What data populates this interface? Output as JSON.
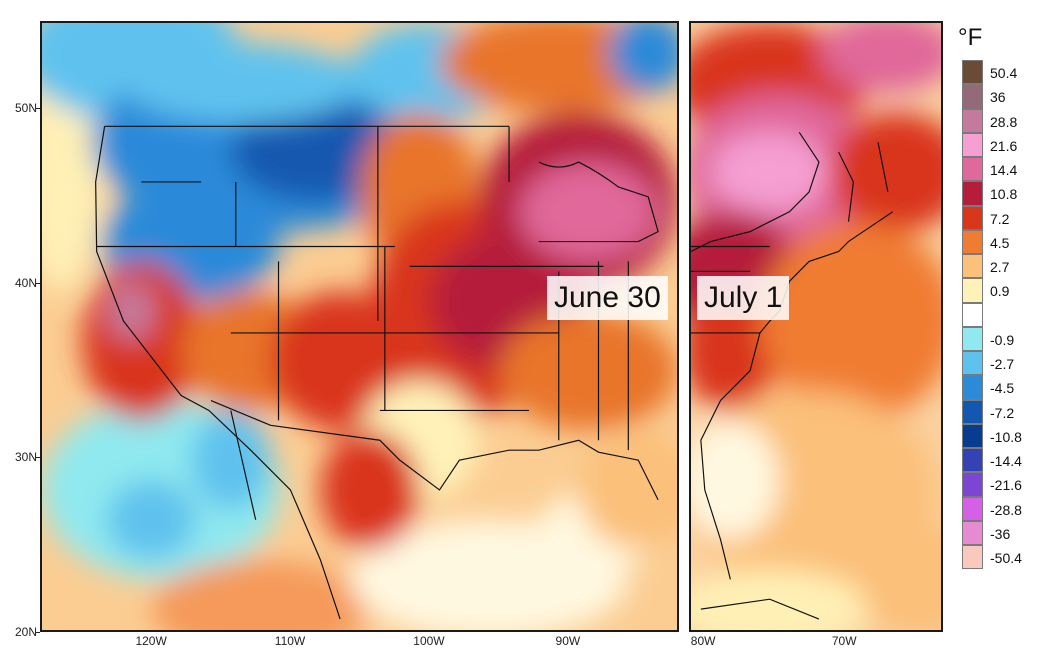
{
  "map": {
    "unit": "°F",
    "panels": [
      {
        "date": "June 30",
        "lon_range": [
          -128,
          -82
        ],
        "lat_range": [
          20,
          55
        ]
      },
      {
        "date": "July 1",
        "lon_range": [
          -81,
          -63
        ],
        "lat_range": [
          20,
          55
        ]
      }
    ],
    "lat_ticks": [
      "50N",
      "40N",
      "30N",
      "20N"
    ],
    "lat_values": [
      50,
      40,
      30,
      20
    ],
    "lon_ticks": [
      "120W",
      "110W",
      "100W",
      "90W",
      "80W",
      "70W"
    ],
    "lon_values": [
      -120,
      -110,
      -100,
      -90,
      -80,
      -70
    ],
    "legend": [
      {
        "label": "50.4",
        "color": "#6b4a36"
      },
      {
        "label": "36",
        "color": "#946a78"
      },
      {
        "label": "28.8",
        "color": "#c47a9c"
      },
      {
        "label": "21.6",
        "color": "#f59fd3"
      },
      {
        "label": "14.4",
        "color": "#e0689a"
      },
      {
        "label": "10.8",
        "color": "#b51e3a"
      },
      {
        "label": "7.2",
        "color": "#d9361c"
      },
      {
        "label": "4.5",
        "color": "#f07b33"
      },
      {
        "label": "2.7",
        "color": "#fbc07a"
      },
      {
        "label": "0.9",
        "color": "#fff2b8"
      },
      {
        "label": "",
        "color": "#ffffff"
      },
      {
        "label": "-0.9",
        "color": "#8fe9ef"
      },
      {
        "label": "-2.7",
        "color": "#5ec2ee"
      },
      {
        "label": "-4.5",
        "color": "#2c8ad9"
      },
      {
        "label": "-7.2",
        "color": "#1258b0"
      },
      {
        "label": "-10.8",
        "color": "#063d90"
      },
      {
        "label": "-14.4",
        "color": "#3542b4"
      },
      {
        "label": "-21.6",
        "color": "#7c45d4"
      },
      {
        "label": "-28.8",
        "color": "#d65fe8"
      },
      {
        "label": "-36",
        "color": "#e68ad2"
      },
      {
        "label": "-50.4",
        "color": "#f9c9be"
      }
    ]
  }
}
